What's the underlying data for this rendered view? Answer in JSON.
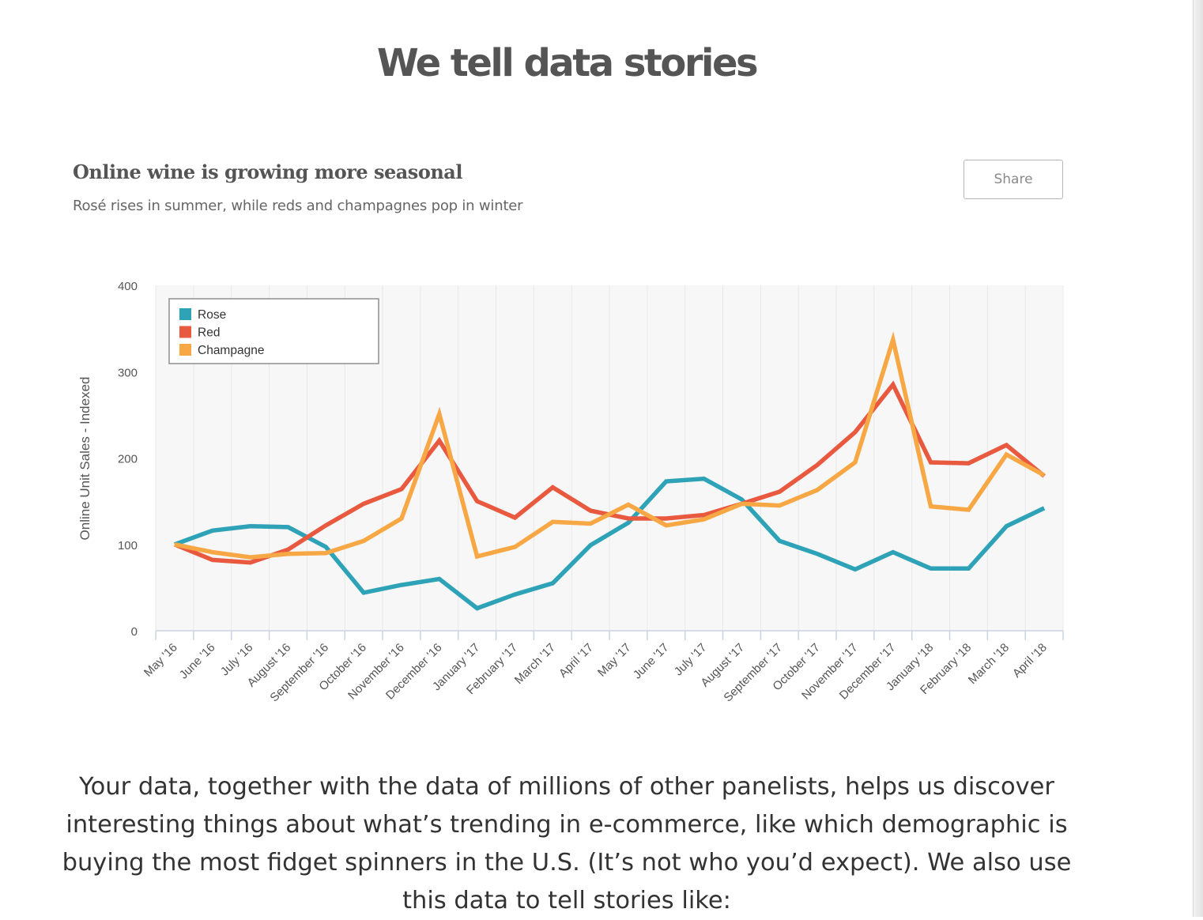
{
  "page": {
    "heading": "We tell data stories",
    "body_text": "Your data, together with the data of millions of other panelists, helps us discover interesting things about what’s trending in e-commerce, like which demographic is buying the most fidget spinners in the U.S. (It’s not who you’d expect). We also use this data to tell stories like:"
  },
  "share_label": "Share",
  "colors": {
    "rose": "#2ea3b7",
    "red": "#e8593f",
    "champagne": "#f8a745",
    "plot_bg": "#f7f7f7",
    "text": "#555555"
  },
  "chart_data": {
    "type": "line",
    "title": "Online wine is growing more seasonal",
    "subtitle": "Rosé rises in summer, while reds and champagnes pop in winter",
    "xlabel": "",
    "ylabel": "Online Unit Sales - Indexed",
    "ylim": [
      0,
      400
    ],
    "yticks": [
      "0",
      "100",
      "200",
      "300",
      "400"
    ],
    "grid": "vertical",
    "legend_position": "top-left",
    "categories": [
      "May '16",
      "June '16",
      "July '16",
      "August '16",
      "September '16",
      "October '16",
      "November '16",
      "December '16",
      "January '17",
      "February '17",
      "March '17",
      "April '17",
      "May '17",
      "June '17",
      "July '17",
      "August '17",
      "September '17",
      "October '17",
      "November '17",
      "December '17",
      "January '18",
      "February '18",
      "March '18",
      "April '18"
    ],
    "series": [
      {
        "name": "Rose",
        "color": "#2ea3b7",
        "values": [
          100,
          116,
          121,
          120,
          97,
          44,
          53,
          60,
          26,
          42,
          55,
          99,
          125,
          173,
          176,
          152,
          104,
          89,
          71,
          91,
          72,
          72,
          121,
          142
        ]
      },
      {
        "name": "Red",
        "color": "#e8593f",
        "values": [
          100,
          82,
          79,
          94,
          122,
          147,
          164,
          220,
          150,
          131,
          166,
          139,
          130,
          130,
          134,
          147,
          161,
          192,
          230,
          285,
          195,
          194,
          215,
          179
        ]
      },
      {
        "name": "Champagne",
        "color": "#f8a745",
        "values": [
          100,
          91,
          85,
          89,
          90,
          104,
          130,
          251,
          86,
          97,
          126,
          124,
          146,
          122,
          129,
          147,
          145,
          163,
          195,
          337,
          144,
          140,
          204,
          180
        ]
      }
    ]
  }
}
